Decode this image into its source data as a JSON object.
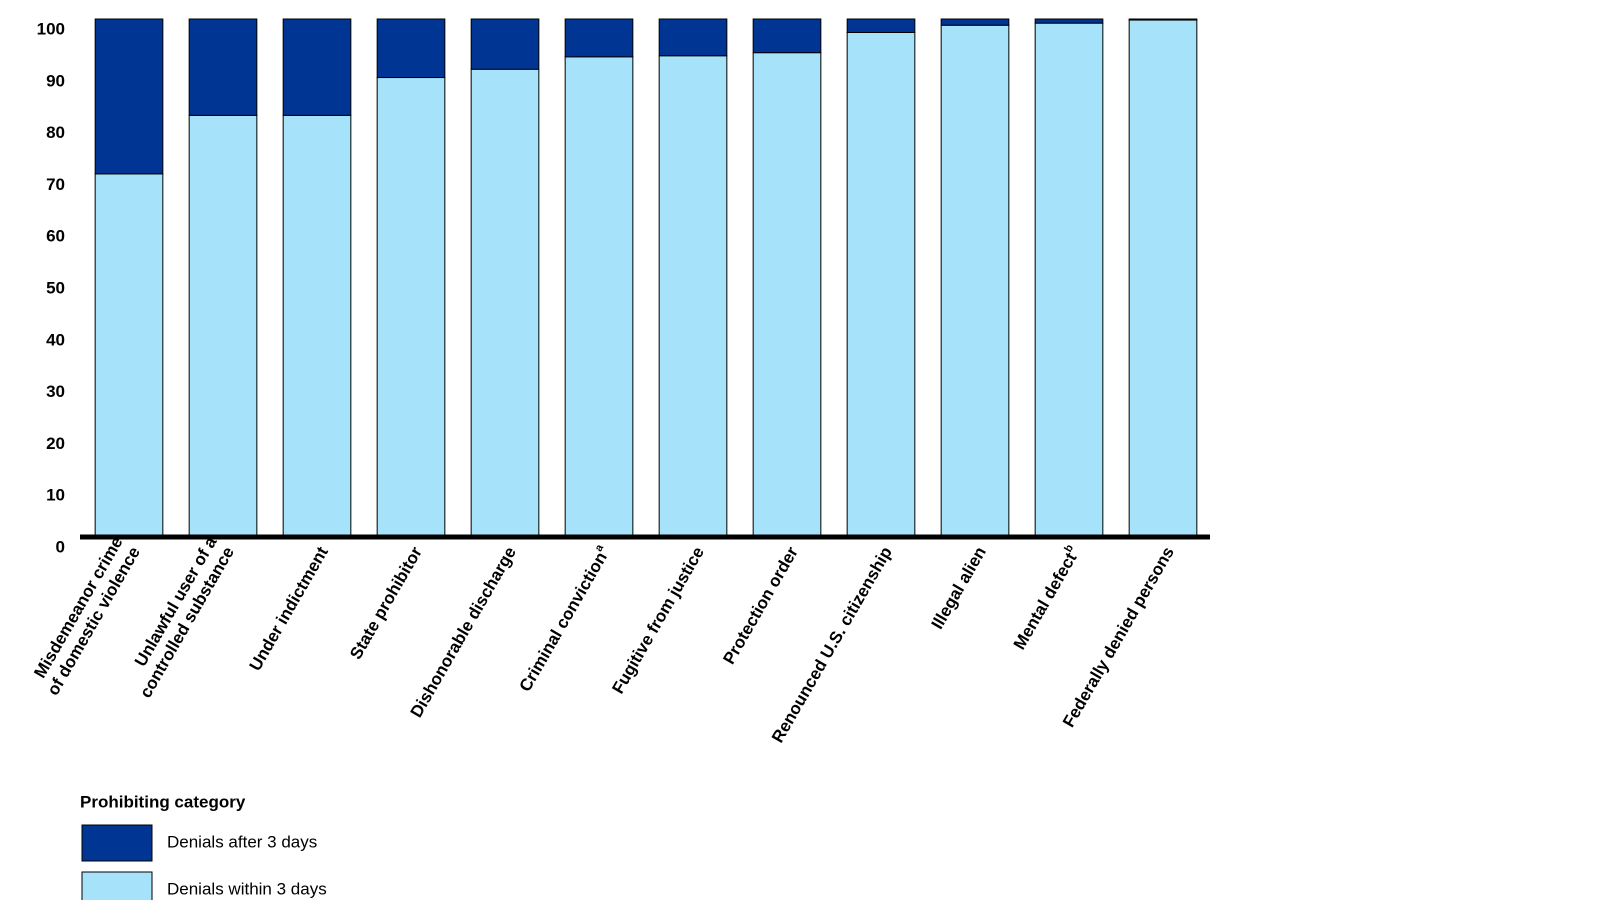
{
  "chart_data": {
    "type": "stacked_bar",
    "categories": [
      [
        "Misdemeanor crime",
        "of domestic violence"
      ],
      [
        "Unlawful user of a",
        "controlled substance"
      ],
      [
        "Under indictment"
      ],
      [
        "State prohibitor"
      ],
      [
        "Dishonorable discharge"
      ],
      [
        "Criminal conviction"
      ],
      [
        "Fugitive from justice"
      ],
      [
        "Protection order"
      ],
      [
        "Renounced U.S. citizenship"
      ],
      [
        "Illegal alien"
      ],
      [
        "Mental defect"
      ],
      [
        "Federally denied persons"
      ]
    ],
    "category_notes": [
      null,
      null,
      null,
      null,
      null,
      "a",
      null,
      null,
      null,
      null,
      "b",
      null
    ],
    "series": [
      {
        "name": "Denials within 3 days",
        "color": "#a6e3fa",
        "values": [
          70.1,
          81.4,
          81.4,
          88.7,
          90.3,
          92.7,
          92.9,
          93.5,
          97.4,
          98.8,
          99.2,
          99.8
        ]
      },
      {
        "name": "Denials after 3 days",
        "color": "#003594",
        "values": [
          29.9,
          18.6,
          18.6,
          11.3,
          9.7,
          7.3,
          7.1,
          6.5,
          2.6,
          1.2,
          0.8,
          0.2
        ]
      }
    ],
    "legend_title": "Prohibiting category",
    "ylim": [
      0,
      100
    ],
    "yticks": [
      0,
      10,
      20,
      30,
      40,
      50,
      60,
      70,
      80,
      90,
      100
    ]
  }
}
